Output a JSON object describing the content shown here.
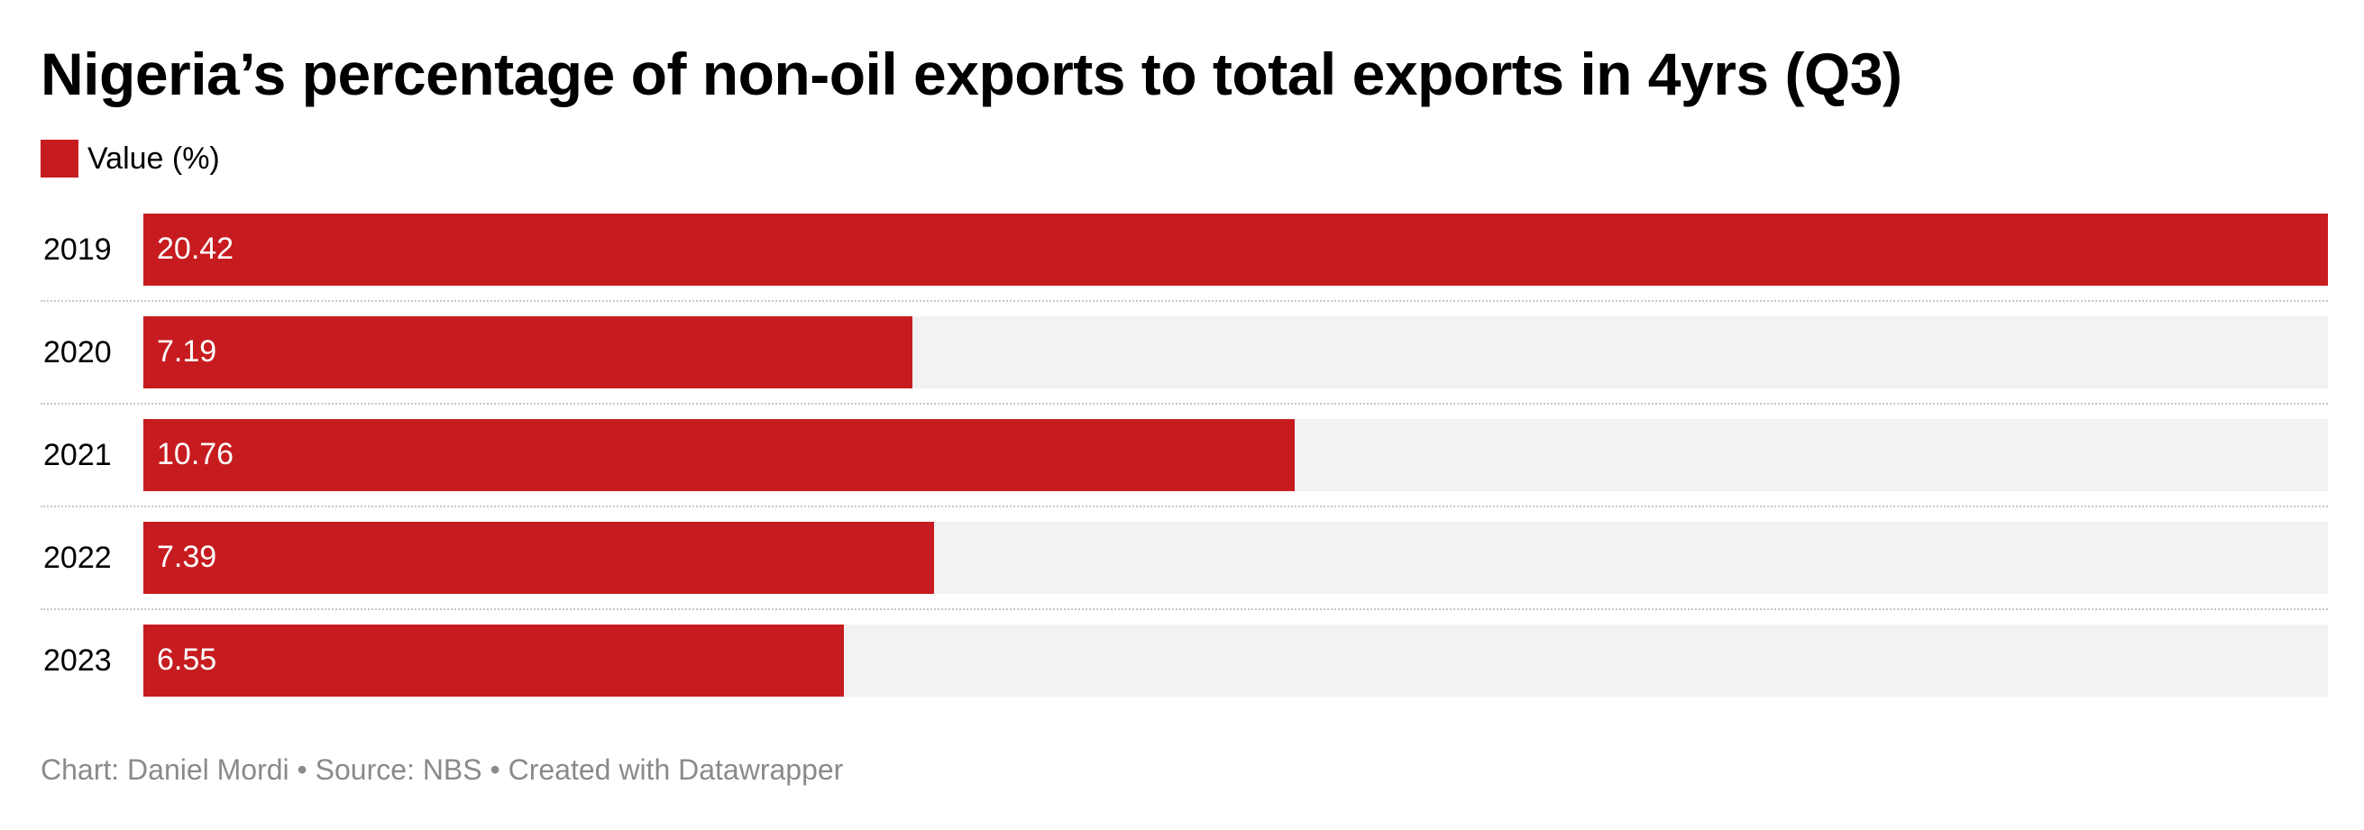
{
  "chart_data": {
    "type": "bar",
    "orientation": "horizontal",
    "title": "Nigeria’s percentage of non-oil exports to total exports in 4yrs (Q3)",
    "categories": [
      "2019",
      "2020",
      "2021",
      "2022",
      "2023"
    ],
    "series": [
      {
        "name": "Value (%)",
        "values": [
          20.42,
          7.19,
          10.76,
          7.39,
          6.55
        ],
        "color": "#c71c1f"
      }
    ],
    "xlim": [
      0,
      20.42
    ],
    "grid": false,
    "legend": "top-left",
    "value_labels": [
      "20.42",
      "7.19",
      "10.76",
      "7.39",
      "6.55"
    ]
  },
  "footer": {
    "text": "Chart: Daniel Mordi • Source: NBS • Created with Datawrapper"
  },
  "colors": {
    "bar": "#c71c1f",
    "track": "#f2f2f2",
    "footer_text": "#8a8a8a"
  }
}
